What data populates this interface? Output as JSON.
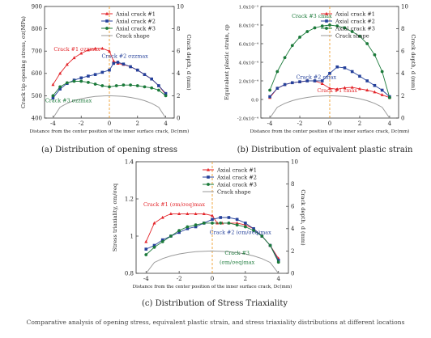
{
  "chart_data": [
    {
      "id": "a",
      "type": "line",
      "caption": "(a) Distribution of opening stress",
      "xlabel": "Distance from the center position of the inner surface crack, Dc(mm)",
      "ylabel": "Crack tip opening stress, σz(MPa)",
      "y2label": "Crack depth, d (mm)",
      "xlim": [
        -4.6,
        4.6
      ],
      "xticks": [
        -4,
        -2,
        0,
        2,
        4
      ],
      "ylim": [
        400,
        900
      ],
      "yticks": [
        400,
        500,
        600,
        700,
        800,
        900
      ],
      "y2lim": [
        0,
        10
      ],
      "y2ticks": [
        0,
        2,
        4,
        6,
        8,
        10
      ],
      "legend": [
        "Axial crack #1",
        "Axial crack #2",
        "Axial crack #3",
        "Crack shape"
      ],
      "series": [
        {
          "name": "Axial crack #1",
          "color": "#e3262b",
          "marker": "triangle",
          "x": [
            -4.0,
            -3.5,
            -3.0,
            -2.5,
            -2.0,
            -1.5,
            -1.0,
            -0.5,
            0.0,
            0.3,
            0.6,
            1.0,
            1.5,
            2.0,
            2.5,
            3.0,
            3.5,
            4.0
          ],
          "y": [
            550,
            600,
            640,
            670,
            690,
            705,
            712,
            712,
            700,
            655,
            645,
            640,
            630,
            615,
            595,
            575,
            545,
            505
          ]
        },
        {
          "name": "Axial crack #2",
          "color": "#24409a",
          "marker": "square",
          "x": [
            -4.0,
            -3.5,
            -3.0,
            -2.5,
            -2.0,
            -1.5,
            -1.0,
            -0.5,
            0.0,
            0.3,
            0.6,
            1.0,
            1.5,
            2.0,
            2.5,
            3.0,
            3.5,
            4.0
          ],
          "y": [
            490,
            530,
            555,
            570,
            580,
            588,
            595,
            605,
            615,
            645,
            650,
            642,
            630,
            615,
            595,
            575,
            545,
            510
          ]
        },
        {
          "name": "Axial crack #3",
          "color": "#1b7a3a",
          "marker": "circle",
          "x": [
            -4.0,
            -3.5,
            -3.0,
            -2.5,
            -2.0,
            -1.5,
            -1.0,
            -0.5,
            0.0,
            0.5,
            1.0,
            1.5,
            2.0,
            2.5,
            3.0,
            3.5,
            4.0
          ],
          "y": [
            500,
            540,
            558,
            565,
            565,
            560,
            552,
            545,
            540,
            545,
            548,
            548,
            545,
            540,
            535,
            525,
            500
          ]
        },
        {
          "name": "Crack shape",
          "color": "#9a9a9a",
          "marker": "none",
          "axis": "y2",
          "x": [
            -4.0,
            -3.5,
            -3.0,
            -2.5,
            -2.0,
            -1.5,
            -1.0,
            -0.5,
            0.0,
            0.5,
            1.0,
            1.5,
            2.0,
            2.5,
            3.0,
            3.5,
            4.0
          ],
          "y": [
            0.0,
            0.97,
            1.32,
            1.56,
            1.73,
            1.85,
            1.94,
            1.98,
            2.0,
            1.98,
            1.94,
            1.85,
            1.73,
            1.56,
            1.32,
            0.97,
            0.0
          ]
        }
      ],
      "annotations": [
        {
          "text": "Crack #1 σzzmax",
          "color": "#e3262b",
          "x": -2.3,
          "y": 700
        },
        {
          "text": "Crack #2 σzzmax",
          "color": "#24409a",
          "x": 1.1,
          "y": 670
        },
        {
          "text": "Crack #3 σzzmax",
          "color": "#1b7a3a",
          "x": -2.9,
          "y": 470
        }
      ]
    },
    {
      "id": "b",
      "type": "line",
      "caption": "(b) Distribution of equivalent plastic strain",
      "xlabel": "Distance from the center position of the inner surface crack, Dc(mm)",
      "ylabel": "Equivalent plastic strain, εp",
      "y2label": "Crack depth, d (mm)",
      "xlim": [
        -4.6,
        4.6
      ],
      "xticks": [
        -4,
        -2,
        0,
        2,
        4
      ],
      "ylim": [
        -0.0002,
        0.001
      ],
      "yticks": [
        "-2.0x10⁻⁴",
        "0.0",
        "2.0x10⁻⁴",
        "4.0x10⁻⁴",
        "6.0x10⁻⁴",
        "8.0x10⁻⁴",
        "1.0x10⁻³"
      ],
      "ytick_values": [
        -0.0002,
        0.0,
        0.0002,
        0.0004,
        0.0006,
        0.0008,
        0.001
      ],
      "y2lim": [
        0,
        10
      ],
      "y2ticks": [
        0,
        2,
        4,
        6,
        8,
        10
      ],
      "legend": [
        "Axial crack #1",
        "Axial crack #2",
        "Axial crack #3",
        "Crack shape"
      ],
      "series": [
        {
          "name": "Axial crack #1",
          "color": "#e3262b",
          "marker": "triangle",
          "x": [
            -4.0,
            -3.5,
            -3.0,
            -2.5,
            -2.0,
            -1.5,
            -1.0,
            -0.5,
            0.0,
            0.5,
            1.0,
            1.5,
            2.0,
            2.5,
            3.0,
            3.5,
            4.0
          ],
          "y": [
            2e-05,
            0.00012,
            0.00016,
            0.00018,
            0.00019,
            0.0002,
            0.0002,
            0.00017,
            0.00012,
            0.00011,
            0.000125,
            0.00013,
            0.000115,
            0.0001,
            8e-05,
            5e-05,
            2e-05
          ]
        },
        {
          "name": "Axial crack #2",
          "color": "#24409a",
          "marker": "square",
          "x": [
            -4.0,
            -3.5,
            -3.0,
            -2.5,
            -2.0,
            -1.5,
            -1.0,
            -0.5,
            0.0,
            0.5,
            1.0,
            1.5,
            2.0,
            2.5,
            3.0,
            3.5,
            4.0
          ],
          "y": [
            3e-05,
            0.00012,
            0.00016,
            0.00018,
            0.00019,
            0.0002,
            0.0002,
            0.0002,
            0.00028,
            0.00035,
            0.00034,
            0.0003,
            0.00025,
            0.0002,
            0.00015,
            0.0001,
            3e-05
          ]
        },
        {
          "name": "Axial crack #3",
          "color": "#1b7a3a",
          "marker": "circle",
          "x": [
            -4.0,
            -3.5,
            -3.0,
            -2.5,
            -2.0,
            -1.5,
            -1.0,
            -0.5,
            0.0,
            0.5,
            1.0,
            1.5,
            2.0,
            2.5,
            3.0,
            3.5,
            4.0
          ],
          "y": [
            0.0001,
            0.0003,
            0.00045,
            0.00058,
            0.00067,
            0.00073,
            0.00077,
            0.00079,
            0.0008,
            0.00079,
            0.00077,
            0.00073,
            0.00068,
            0.0006,
            0.00048,
            0.0003,
            2e-05
          ]
        },
        {
          "name": "Crack shape",
          "color": "#9a9a9a",
          "marker": "none",
          "axis": "y2",
          "x": [
            -4.0,
            -3.5,
            -3.0,
            -2.5,
            -2.0,
            -1.5,
            -1.0,
            -0.5,
            0.0,
            0.5,
            1.0,
            1.5,
            2.0,
            2.5,
            3.0,
            3.5,
            4.0
          ],
          "y": [
            0.0,
            0.97,
            1.32,
            1.56,
            1.73,
            1.85,
            1.94,
            1.98,
            2.0,
            1.98,
            1.94,
            1.85,
            1.73,
            1.56,
            1.32,
            0.97,
            0.0
          ]
        }
      ],
      "annotations": [
        {
          "text": "Crack #3 εmax",
          "color": "#1b7a3a",
          "x": -1.2,
          "y": 0.00088
        },
        {
          "text": "Crack #2 εmax",
          "color": "#24409a",
          "x": -0.9,
          "y": 0.00022
        },
        {
          "text": "Crack #1 εmax",
          "color": "#e3262b",
          "x": 0.5,
          "y": 8e-05
        }
      ]
    },
    {
      "id": "c",
      "type": "line",
      "caption": "(c) Distribution of Stress Triaxiality",
      "xlabel": "Distance from the center position of the inner surface crack, Dc(mm)",
      "ylabel": "Stress triaxiality, σm/σeq",
      "y2label": "Crack depth, d (mm)",
      "xlim": [
        -4.6,
        4.6
      ],
      "xticks": [
        -4,
        -2,
        0,
        2,
        4
      ],
      "ylim": [
        0.8,
        1.4
      ],
      "yticks": [
        0.8,
        1.0,
        1.2,
        1.4
      ],
      "y2lim": [
        0,
        10
      ],
      "y2ticks": [
        0,
        2,
        4,
        6,
        8,
        10
      ],
      "legend": [
        "Axial crack #1",
        "Axial crack #2",
        "Axial crack #3",
        "Crack shape"
      ],
      "series": [
        {
          "name": "Axial crack #1",
          "color": "#e3262b",
          "marker": "triangle",
          "x": [
            -4.0,
            -3.5,
            -3.0,
            -2.5,
            -2.0,
            -1.5,
            -1.0,
            -0.5,
            0.0,
            0.3,
            0.6,
            1.0,
            1.5,
            2.0,
            2.5,
            3.0,
            3.5,
            4.0
          ],
          "y": [
            0.97,
            1.07,
            1.1,
            1.12,
            1.12,
            1.12,
            1.12,
            1.12,
            1.11,
            1.07,
            1.07,
            1.07,
            1.07,
            1.06,
            1.04,
            1.0,
            0.95,
            0.88
          ]
        },
        {
          "name": "Axial crack #2",
          "color": "#24409a",
          "marker": "square",
          "x": [
            -4.0,
            -3.5,
            -3.0,
            -2.5,
            -2.0,
            -1.5,
            -1.0,
            -0.5,
            0.0,
            0.5,
            1.0,
            1.5,
            2.0,
            2.5,
            3.0,
            3.5,
            4.0
          ],
          "y": [
            0.93,
            0.95,
            0.98,
            1.0,
            1.02,
            1.04,
            1.05,
            1.07,
            1.09,
            1.1,
            1.1,
            1.09,
            1.07,
            1.04,
            1.0,
            0.95,
            0.87
          ]
        },
        {
          "name": "Axial crack #3",
          "color": "#1b7a3a",
          "marker": "circle",
          "x": [
            -4.0,
            -3.5,
            -3.0,
            -2.5,
            -2.0,
            -1.5,
            -1.0,
            -0.5,
            0.0,
            0.5,
            1.0,
            1.5,
            2.0,
            2.5,
            3.0,
            3.5,
            4.0
          ],
          "y": [
            0.9,
            0.94,
            0.97,
            1.0,
            1.03,
            1.05,
            1.06,
            1.07,
            1.07,
            1.07,
            1.07,
            1.06,
            1.05,
            1.03,
            1.0,
            0.95,
            0.86
          ]
        },
        {
          "name": "Crack shape",
          "color": "#9a9a9a",
          "marker": "none",
          "axis": "y2",
          "x": [
            -4.0,
            -3.5,
            -3.0,
            -2.5,
            -2.0,
            -1.5,
            -1.0,
            -0.5,
            0.0,
            0.5,
            1.0,
            1.5,
            2.0,
            2.5,
            3.0,
            3.5,
            4.0
          ],
          "y": [
            0.0,
            0.97,
            1.32,
            1.56,
            1.73,
            1.85,
            1.94,
            1.98,
            2.0,
            1.98,
            1.94,
            1.85,
            1.73,
            1.56,
            1.32,
            0.97,
            0.0
          ]
        }
      ],
      "annotations": [
        {
          "text": "Crack #1 (σm/σeq)max",
          "color": "#e3262b",
          "x": -2.3,
          "y": 1.16
        },
        {
          "text": "Crack #2 (σm/σeq)max",
          "color": "#24409a",
          "x": 1.7,
          "y": 1.01
        },
        {
          "text": "Crack #3",
          "color": "#1b7a3a",
          "x": 1.5,
          "y": 0.9
        },
        {
          "text": "(σm/σeq)max",
          "color": "#1b7a3a",
          "x": 1.5,
          "y": 0.85
        }
      ]
    }
  ],
  "figure_caption": "Comparative analysis of opening stress, equivalent plastic strain, and stress triaxiality distributions at different locations"
}
